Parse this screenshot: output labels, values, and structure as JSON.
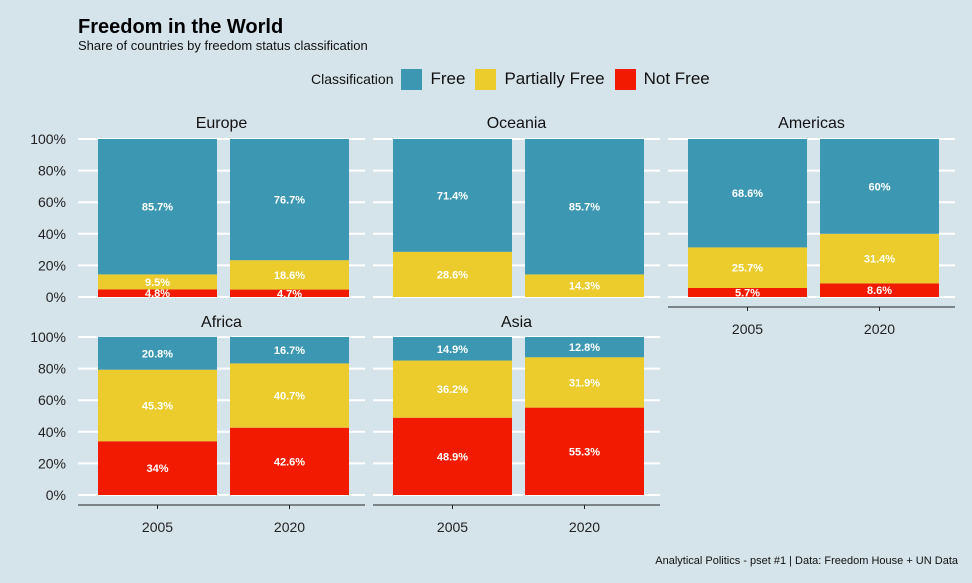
{
  "title": "Freedom in the World",
  "subtitle": "Share of countries by freedom status classification",
  "legend": {
    "title": "Classification",
    "items": [
      {
        "label": "Free",
        "color": "#3c98b2"
      },
      {
        "label": "Partially Free",
        "color": "#ebcc2c"
      },
      {
        "label": "Not Free",
        "color": "#f21a00"
      }
    ]
  },
  "caption": "Analytical Politics - pset #1  |  Data: Freedom House + UN Data",
  "chart_data": {
    "type": "bar",
    "stacked": true,
    "categories": [
      "2005",
      "2020"
    ],
    "series_names": [
      "Free",
      "Partially Free",
      "Not Free"
    ],
    "y_ticks": [
      0,
      20,
      40,
      60,
      80,
      100
    ],
    "y_tick_labels": [
      "0%",
      "20%",
      "40%",
      "60%",
      "80%",
      "100%"
    ],
    "ylim": [
      0,
      100
    ],
    "xlabel": "",
    "ylabel": "",
    "facets": [
      {
        "name": "Europe",
        "bars": [
          {
            "year": "2005",
            "free": 85.7,
            "partially_free": 9.5,
            "not_free": 4.8,
            "labels": {
              "free": "85.7%",
              "partially_free": "9.5%",
              "not_free": "4.8%"
            }
          },
          {
            "year": "2020",
            "free": 76.7,
            "partially_free": 18.6,
            "not_free": 4.7,
            "labels": {
              "free": "76.7%",
              "partially_free": "18.6%",
              "not_free": "4.7%"
            }
          }
        ]
      },
      {
        "name": "Oceania",
        "bars": [
          {
            "year": "2005",
            "free": 71.4,
            "partially_free": 28.6,
            "not_free": 0,
            "labels": {
              "free": "71.4%",
              "partially_free": "28.6%",
              "not_free": ""
            }
          },
          {
            "year": "2020",
            "free": 85.7,
            "partially_free": 14.3,
            "not_free": 0,
            "labels": {
              "free": "85.7%",
              "partially_free": "14.3%",
              "not_free": ""
            }
          }
        ]
      },
      {
        "name": "Americas",
        "bars": [
          {
            "year": "2005",
            "free": 68.6,
            "partially_free": 25.7,
            "not_free": 5.7,
            "labels": {
              "free": "68.6%",
              "partially_free": "25.7%",
              "not_free": "5.7%"
            }
          },
          {
            "year": "2020",
            "free": 60,
            "partially_free": 31.4,
            "not_free": 8.6,
            "labels": {
              "free": "60%",
              "partially_free": "31.4%",
              "not_free": "8.6%"
            }
          }
        ]
      },
      {
        "name": "Africa",
        "bars": [
          {
            "year": "2005",
            "free": 20.8,
            "partially_free": 45.3,
            "not_free": 34,
            "labels": {
              "free": "20.8%",
              "partially_free": "45.3%",
              "not_free": "34%"
            }
          },
          {
            "year": "2020",
            "free": 16.7,
            "partially_free": 40.7,
            "not_free": 42.6,
            "labels": {
              "free": "16.7%",
              "partially_free": "40.7%",
              "not_free": "42.6%"
            }
          }
        ]
      },
      {
        "name": "Asia",
        "bars": [
          {
            "year": "2005",
            "free": 14.9,
            "partially_free": 36.2,
            "not_free": 48.9,
            "labels": {
              "free": "14.9%",
              "partially_free": "36.2%",
              "not_free": "48.9%"
            }
          },
          {
            "year": "2020",
            "free": 12.8,
            "partially_free": 31.9,
            "not_free": 55.3,
            "labels": {
              "free": "12.8%",
              "partially_free": "31.9%",
              "not_free": "55.3%"
            }
          }
        ]
      }
    ]
  }
}
